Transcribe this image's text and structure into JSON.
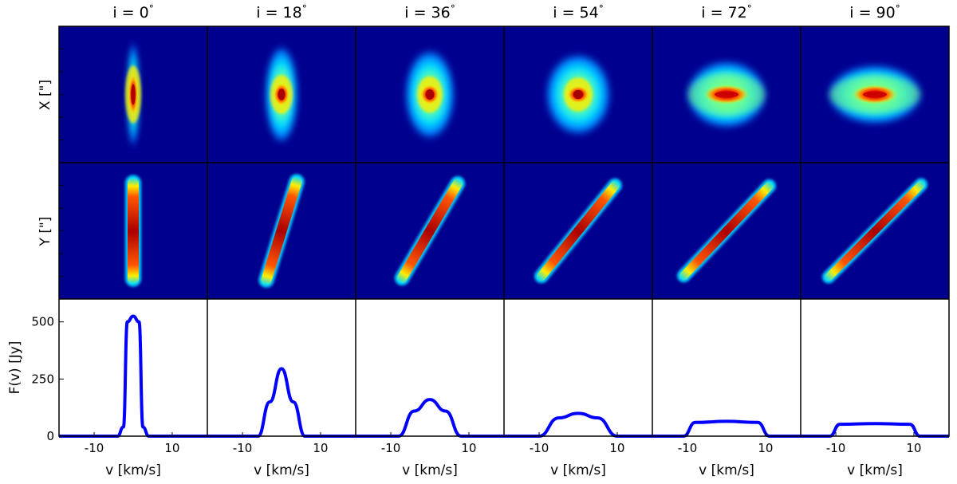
{
  "figure": {
    "row_labels": {
      "x_map": "X [\"]",
      "y_map": "Y [\"]",
      "spectrum": "F(v) [Jy]"
    },
    "xlabel": "v [km/s]",
    "y_ticks": [
      "0",
      "250",
      "500"
    ],
    "x_ticks": [
      "-10",
      "10"
    ],
    "colors": {
      "line": "#0000ff",
      "map_bg": "#00008f",
      "axes": "#000000"
    }
  },
  "chart_data": [
    {
      "type": "line",
      "title": "i = 0",
      "inclination_deg": 0,
      "xlabel": "v [km/s]",
      "ylabel": "F(v) [Jy]",
      "xlim": [
        -19,
        19
      ],
      "ylim": [
        0,
        600
      ],
      "peak_flux": 525,
      "line_width_kms": 3.5,
      "profile": "gaussian",
      "x": [
        -19,
        -4,
        -2.5,
        -1.5,
        0,
        1.5,
        2.5,
        4,
        19
      ],
      "y": [
        0,
        0,
        40,
        500,
        525,
        500,
        40,
        0,
        0
      ]
    },
    {
      "type": "line",
      "title": "i = 18",
      "inclination_deg": 18,
      "xlabel": "v [km/s]",
      "ylabel": "F(v) [Jy]",
      "xlim": [
        -19,
        19
      ],
      "ylim": [
        0,
        600
      ],
      "peak_flux": 295,
      "line_width_kms": 5.5,
      "profile": "gaussian",
      "x": [
        -19,
        -6,
        -3,
        0,
        3,
        6,
        19
      ],
      "y": [
        0,
        0,
        150,
        295,
        150,
        0,
        0
      ]
    },
    {
      "type": "line",
      "title": "i = 36",
      "inclination_deg": 36,
      "xlabel": "v [km/s]",
      "ylabel": "F(v) [Jy]",
      "xlim": [
        -19,
        19
      ],
      "ylim": [
        0,
        600
      ],
      "peak_flux": 160,
      "line_width_kms": 8,
      "profile": "gaussian",
      "x": [
        -19,
        -8,
        -4,
        0,
        4,
        8,
        19
      ],
      "y": [
        0,
        0,
        110,
        160,
        110,
        0,
        0
      ]
    },
    {
      "type": "line",
      "title": "i = 54",
      "inclination_deg": 54,
      "xlabel": "v [km/s]",
      "ylabel": "F(v) [Jy]",
      "xlim": [
        -19,
        19
      ],
      "ylim": [
        0,
        600
      ],
      "peak_flux": 100,
      "line_width_kms": 10,
      "profile": "rounded",
      "x": [
        -19,
        -10,
        -5,
        0,
        5,
        10,
        19
      ],
      "y": [
        0,
        0,
        80,
        100,
        80,
        0,
        0
      ]
    },
    {
      "type": "line",
      "title": "i = 72",
      "inclination_deg": 72,
      "xlabel": "v [km/s]",
      "ylabel": "F(v) [Jy]",
      "xlim": [
        -19,
        19
      ],
      "ylim": [
        0,
        600
      ],
      "peak_flux": 65,
      "line_width_kms": 11,
      "profile": "flat",
      "x": [
        -19,
        -11,
        -8,
        0,
        8,
        11,
        19
      ],
      "y": [
        0,
        0,
        60,
        65,
        60,
        0,
        0
      ]
    },
    {
      "type": "line",
      "title": "i = 90",
      "inclination_deg": 90,
      "xlabel": "v [km/s]",
      "ylabel": "F(v) [Jy]",
      "xlim": [
        -19,
        19
      ],
      "ylim": [
        0,
        600
      ],
      "peak_flux": 55,
      "line_width_kms": 11.5,
      "profile": "flat",
      "x": [
        -19,
        -11.5,
        -9,
        0,
        9,
        11.5,
        19
      ],
      "y": [
        0,
        0,
        52,
        55,
        52,
        0,
        0
      ]
    }
  ]
}
